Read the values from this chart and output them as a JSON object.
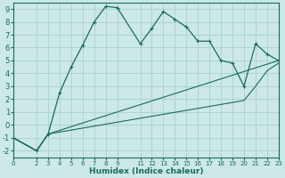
{
  "xlabel": "Humidex (Indice chaleur)",
  "bg_color": "#cce8e8",
  "grid_color": "#aacfcf",
  "line_color": "#1a6b5a",
  "marker": "+",
  "xlim": [
    0,
    23
  ],
  "ylim": [
    -2.5,
    9.5
  ],
  "xtick_positions": [
    0,
    2,
    3,
    4,
    5,
    6,
    7,
    8,
    9,
    11,
    12,
    13,
    14,
    15,
    16,
    17,
    18,
    19,
    20,
    21,
    22,
    23
  ],
  "xtick_labels": [
    "0",
    "2",
    "3",
    "4",
    "5",
    "6",
    "7",
    "8",
    "9",
    "11",
    "12",
    "13",
    "14",
    "15",
    "16",
    "17",
    "18",
    "19",
    "20",
    "21",
    "22",
    "23"
  ],
  "ytick_positions": [
    -2,
    -1,
    0,
    1,
    2,
    3,
    4,
    5,
    6,
    7,
    8,
    9
  ],
  "ytick_labels": [
    "-2",
    "-1",
    "0",
    "1",
    "2",
    "3",
    "4",
    "5",
    "6",
    "7",
    "8",
    "9"
  ],
  "series": [
    {
      "x": [
        0,
        2,
        3,
        4,
        5,
        6,
        7,
        8,
        9,
        11,
        12,
        13,
        14,
        15,
        16,
        17,
        18,
        19,
        20,
        21,
        22,
        23
      ],
      "y": [
        -1.0,
        -2.0,
        -0.7,
        2.5,
        4.5,
        6.2,
        8.0,
        9.2,
        9.1,
        6.3,
        7.5,
        8.8,
        8.2,
        7.6,
        6.5,
        6.5,
        5.0,
        4.8,
        3.0,
        6.3,
        5.5,
        5.0
      ]
    },
    {
      "x": [
        0,
        2,
        3,
        23
      ],
      "y": [
        -1.0,
        -2.0,
        -0.7,
        5.0
      ]
    },
    {
      "x": [
        0,
        2,
        3,
        20,
        21,
        22,
        23
      ],
      "y": [
        -1.0,
        -2.0,
        -0.7,
        1.9,
        3.0,
        4.2,
        4.8
      ]
    }
  ]
}
